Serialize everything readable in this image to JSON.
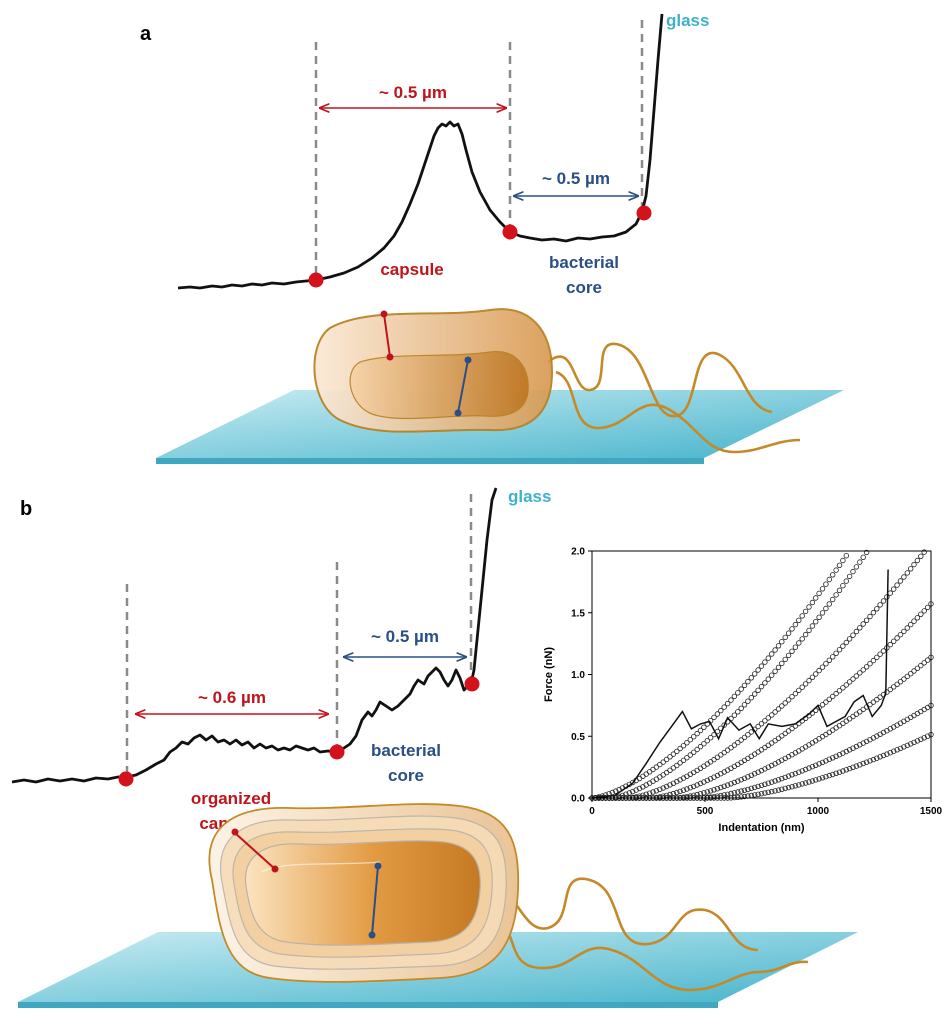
{
  "panel_a": {
    "letter": "a",
    "glass_label": "glass",
    "capsule_width": "~ 0.5 µm",
    "core_width": "~ 0.5 µm",
    "capsule_label": "capsule",
    "core_label_1": "bacterial",
    "core_label_2": "core"
  },
  "panel_b": {
    "letter": "b",
    "glass_label": "glass",
    "capsule_width": "~ 0.6 µm",
    "core_width": "~ 0.5 µm",
    "capsule_label_1": "organized",
    "capsule_label_2": "capsule",
    "core_label_1": "bacterial",
    "core_label_2": "core"
  },
  "colors": {
    "red": "#c0141c",
    "blue": "#2a4f86",
    "glass": "#3fb2c8",
    "bacterium": "#c8872e"
  },
  "chart_data": {
    "type": "scatter",
    "xlabel": "Indentation (nm)",
    "ylabel": "Force (nN)",
    "xlim": [
      0,
      1500
    ],
    "ylim": [
      0,
      2.0
    ],
    "xticks": [
      0,
      500,
      1000,
      1500
    ],
    "yticks": [
      0.0,
      0.5,
      1.0,
      1.5,
      2.0
    ],
    "xtick_labels": [
      "0",
      "500",
      "1000",
      "1500"
    ],
    "ytick_labels": [
      "0.0",
      "0.5",
      "1.0",
      "1.5",
      "2.0"
    ],
    "fit_curves": [
      {
        "x0": 0,
        "k": 5.2e-05,
        "n": 1.5
      },
      {
        "x0": 80,
        "k": 5.2e-05,
        "n": 1.5
      },
      {
        "x0": 160,
        "k": 4.2e-05,
        "n": 1.5
      },
      {
        "x0": 260,
        "k": 3.6e-05,
        "n": 1.5
      },
      {
        "x0": 370,
        "k": 3e-05,
        "n": 1.5
      },
      {
        "x0": 480,
        "k": 2.3e-05,
        "n": 1.5
      },
      {
        "x0": 600,
        "k": 1.9e-05,
        "n": 1.5
      }
    ],
    "measured_curve": {
      "x": [
        0,
        100,
        180,
        240,
        300,
        360,
        400,
        440,
        480,
        520,
        560,
        600,
        650,
        700,
        740,
        780,
        840,
        900,
        960,
        1000,
        1040,
        1080,
        1120,
        1160,
        1200,
        1240,
        1280,
        1300,
        1310
      ],
      "y": [
        0,
        0.02,
        0.12,
        0.28,
        0.45,
        0.6,
        0.7,
        0.56,
        0.6,
        0.62,
        0.48,
        0.65,
        0.55,
        0.6,
        0.48,
        0.6,
        0.58,
        0.6,
        0.68,
        0.75,
        0.58,
        0.62,
        0.66,
        0.78,
        0.83,
        0.66,
        0.75,
        0.85,
        1.85
      ]
    }
  }
}
